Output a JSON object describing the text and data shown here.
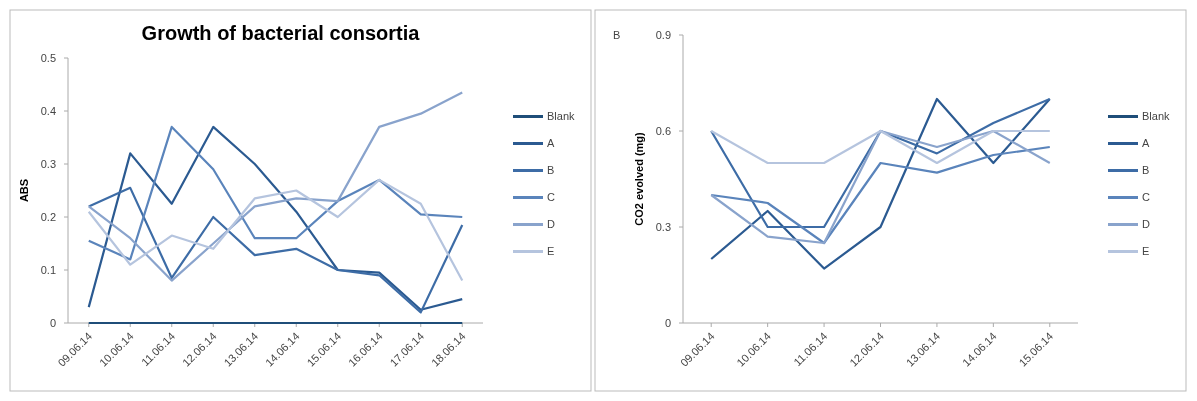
{
  "chart_data": [
    {
      "type": "line",
      "title": "Growth of bacterial consortia",
      "ylabel": "ABS",
      "categories": [
        "09.06.14",
        "10.06.14",
        "11.06.14",
        "12.06.14",
        "13.06.14",
        "14.06.14",
        "15.06.14",
        "16.06.14",
        "17.06.14",
        "18.06.14"
      ],
      "ylim": [
        0,
        0.5
      ],
      "yticks": [
        0,
        0.1,
        0.2,
        0.3,
        0.4,
        0.5
      ],
      "grid": false,
      "legend": "right",
      "marker": "none",
      "line_style": "solid",
      "series": [
        {
          "name": "Blank",
          "color": "#1f4e79",
          "values": [
            0,
            0,
            0,
            0,
            0,
            0,
            0,
            0,
            0,
            0
          ]
        },
        {
          "name": "A",
          "color": "#2b5a91",
          "values": [
            0.03,
            0.32,
            0.225,
            0.37,
            0.3,
            0.21,
            0.1,
            0.095,
            0.025,
            0.045
          ]
        },
        {
          "name": "B",
          "color": "#3d6ca6",
          "values": [
            0.22,
            0.255,
            0.085,
            0.2,
            0.128,
            0.14,
            0.1,
            0.09,
            0.02,
            0.185
          ]
        },
        {
          "name": "C",
          "color": "#5a84bb",
          "values": [
            0.155,
            0.12,
            0.37,
            0.29,
            0.16,
            0.16,
            0.23,
            0.27,
            0.205,
            0.2
          ]
        },
        {
          "name": "D",
          "color": "#89a3cc",
          "values": [
            0.22,
            0.16,
            0.08,
            0.15,
            0.22,
            0.235,
            0.23,
            0.37,
            0.395,
            0.435
          ]
        },
        {
          "name": "E",
          "color": "#b5c4de",
          "values": [
            0.21,
            0.11,
            0.165,
            0.14,
            0.235,
            0.25,
            0.2,
            0.27,
            0.225,
            0.08
          ]
        }
      ]
    },
    {
      "type": "line",
      "ylabel": "CO2 evolved (mg)",
      "annotations": [
        "B"
      ],
      "categories": [
        "09.06.14",
        "10.06.14",
        "11.06.14",
        "12.06.14",
        "13.06.14",
        "14.06.14",
        "15.06.14"
      ],
      "ylim": [
        0,
        0.9
      ],
      "yticks": [
        0,
        0.3,
        0.6,
        0.9
      ],
      "grid": false,
      "legend": "right",
      "marker": "none",
      "line_style": "solid",
      "series": [
        {
          "name": "Blank",
          "color": "#1f4e79",
          "values": [
            null,
            null,
            null,
            null,
            null,
            null,
            null
          ]
        },
        {
          "name": "A",
          "color": "#2b5a91",
          "values": [
            0.2,
            0.35,
            0.17,
            0.3,
            0.7,
            0.5,
            0.7
          ]
        },
        {
          "name": "B",
          "color": "#3d6ca6",
          "values": [
            0.6,
            0.3,
            0.3,
            0.6,
            0.53,
            0.625,
            0.7
          ]
        },
        {
          "name": "C",
          "color": "#5a84bb",
          "values": [
            0.4,
            0.375,
            0.25,
            0.5,
            0.47,
            0.525,
            0.55
          ]
        },
        {
          "name": "D",
          "color": "#89a3cc",
          "values": [
            0.4,
            0.27,
            0.25,
            0.6,
            0.55,
            0.6,
            0.5
          ]
        },
        {
          "name": "E",
          "color": "#b5c4de",
          "values": [
            0.6,
            0.5,
            0.5,
            0.6,
            0.5,
            0.6,
            0.6
          ]
        }
      ]
    }
  ]
}
